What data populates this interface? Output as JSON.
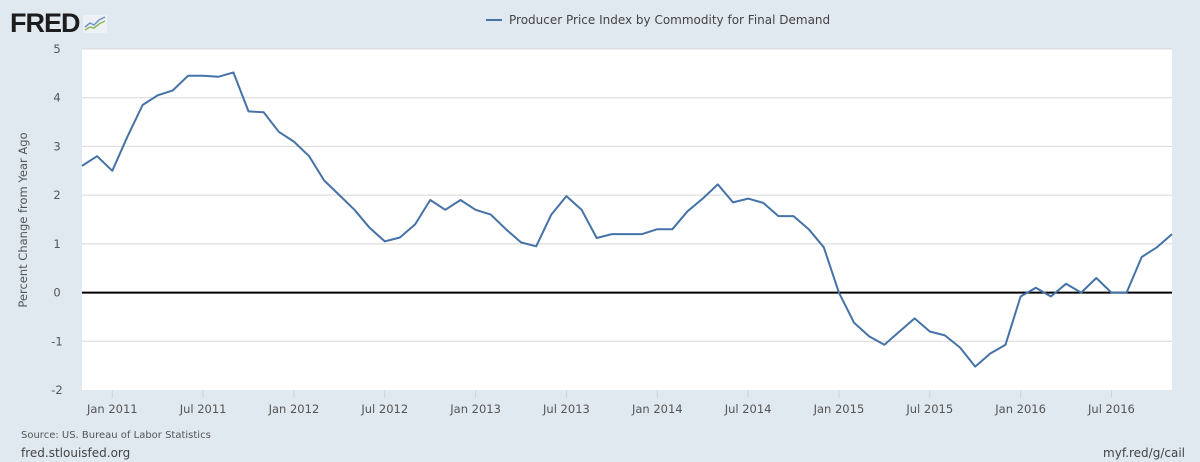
{
  "logo": {
    "text": "FRED",
    "icon": "chart-line-icon"
  },
  "footer": {
    "source": "Source: US. Bureau of Labor Statistics",
    "site": "fred.stlouisfed.org",
    "shortlink": "myf.red/g/cail"
  },
  "colors": {
    "series": "#4572a7",
    "background": "#e1e9f0",
    "plot": "#ffffff",
    "zero_line": "#000000",
    "grid": "#d8d8d8"
  },
  "chart_data": {
    "type": "line",
    "title": "",
    "legend": [
      {
        "name": "Producer Price Index by Commodity for Final Demand",
        "color": "#4572a7"
      }
    ],
    "legend_position": "top-center",
    "xlabel": "",
    "ylabel": "Percent Change from Year Ago",
    "ylim": [
      -2,
      5
    ],
    "yticks": [
      "5",
      "4",
      "3",
      "2",
      "1",
      "0",
      "-1",
      "-2"
    ],
    "ytick_values": [
      5,
      4,
      3,
      2,
      1,
      0,
      -1,
      -2
    ],
    "grid": true,
    "x_start": "Nov 2010",
    "x_end": "Nov 2016",
    "x_frequency": "monthly",
    "xticks": [
      {
        "label": "Jan 2011",
        "month_index": 2
      },
      {
        "label": "Jul 2011",
        "month_index": 8
      },
      {
        "label": "Jan 2012",
        "month_index": 14
      },
      {
        "label": "Jul 2012",
        "month_index": 20
      },
      {
        "label": "Jan 2013",
        "month_index": 26
      },
      {
        "label": "Jul 2013",
        "month_index": 32
      },
      {
        "label": "Jan 2014",
        "month_index": 38
      },
      {
        "label": "Jul 2014",
        "month_index": 44
      },
      {
        "label": "Jan 2015",
        "month_index": 50
      },
      {
        "label": "Jul 2015",
        "month_index": 56
      },
      {
        "label": "Jan 2016",
        "month_index": 62
      },
      {
        "label": "Jul 2016",
        "month_index": 68
      }
    ],
    "series": [
      {
        "name": "Producer Price Index by Commodity for Final Demand",
        "values": [
          2.6,
          2.8,
          2.5,
          3.2,
          3.85,
          4.05,
          4.15,
          4.45,
          4.45,
          4.43,
          4.52,
          3.72,
          3.7,
          3.3,
          3.1,
          2.8,
          2.3,
          2.0,
          1.7,
          1.33,
          1.05,
          1.13,
          1.4,
          1.9,
          1.7,
          1.9,
          1.7,
          1.6,
          1.3,
          1.03,
          0.95,
          1.6,
          1.98,
          1.7,
          1.12,
          1.2,
          1.2,
          1.2,
          1.3,
          1.3,
          1.67,
          1.93,
          2.22,
          1.85,
          1.93,
          1.84,
          1.57,
          1.57,
          1.3,
          0.93,
          0.0,
          -0.62,
          -0.9,
          -1.07,
          -0.8,
          -0.53,
          -0.8,
          -0.88,
          -1.13,
          -1.52,
          -1.25,
          -1.07,
          -0.08,
          0.1,
          -0.08,
          0.18,
          0.0,
          0.3,
          0.0,
          0.0,
          0.73,
          0.93,
          1.2
        ]
      }
    ]
  }
}
